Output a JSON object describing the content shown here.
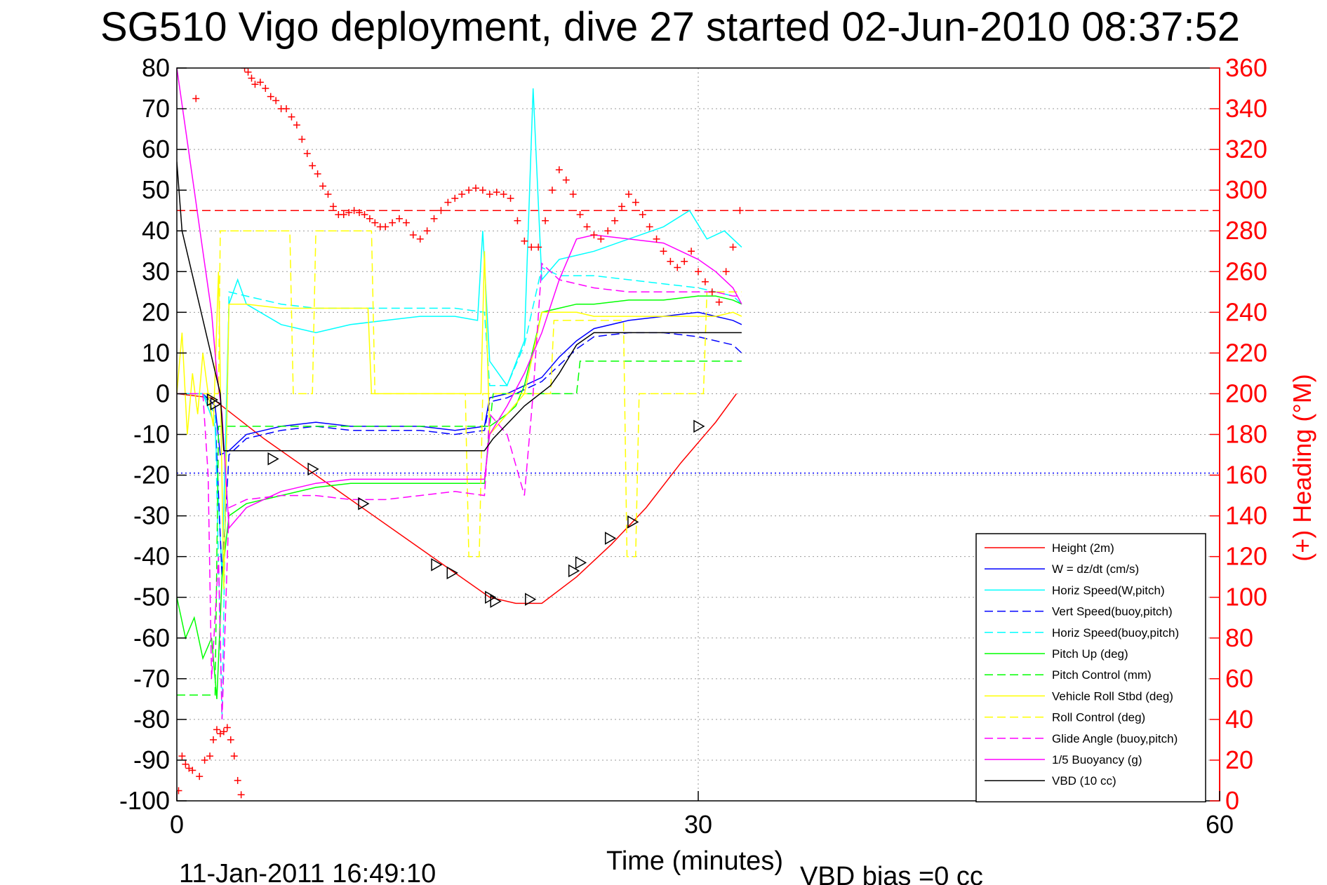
{
  "chart_data": {
    "type": "line",
    "title": "SG510 Vigo deployment, dive 27 started 02-Jun-2010 08:37:52",
    "xlabel": "Time (minutes)",
    "ylabel_right": "(+) Heading (°M)",
    "footer_left": "11-Jan-2011 16:49:10",
    "footer_right": "VBD bias =0 cc",
    "xlim": [
      0,
      60
    ],
    "ylim": [
      -100,
      80
    ],
    "y2lim": [
      0,
      360
    ],
    "xticks": [
      "0",
      "30",
      "60"
    ],
    "yticks": [
      "80",
      "70",
      "60",
      "50",
      "40",
      "30",
      "20",
      "10",
      "0",
      "-10",
      "-20",
      "-30",
      "-40",
      "-50",
      "-60",
      "-70",
      "-80",
      "-90",
      "-100"
    ],
    "y2ticks": [
      "360",
      "340",
      "320",
      "300",
      "280",
      "260",
      "240",
      "220",
      "200",
      "180",
      "160",
      "140",
      "120",
      "100",
      "80",
      "60",
      "40",
      "20",
      "0"
    ],
    "grid": true,
    "legend_position": "bottom-right",
    "series": [
      {
        "name": "Height (2m)",
        "color": "#ff0000",
        "style": "solid",
        "x": [
          0,
          2,
          5,
          10,
          15,
          18,
          19.5,
          21,
          23,
          25,
          27,
          29,
          31,
          32.2
        ],
        "y": [
          0,
          -1,
          -11,
          -26,
          -41,
          -50,
          -51.5,
          -51.5,
          -45,
          -37,
          -28,
          -17,
          -7,
          0
        ]
      },
      {
        "name": "W = dz/dt (cm/s)",
        "color": "#0000ff",
        "style": "solid",
        "x": [
          0,
          1.5,
          2.2,
          2.5,
          3,
          4,
          6,
          8,
          10,
          12,
          14,
          16,
          17.7,
          18,
          19,
          20,
          21,
          22,
          23,
          24,
          26,
          28,
          30,
          31,
          32,
          32.5
        ],
        "y": [
          0,
          0,
          -3,
          -15,
          -14,
          -10,
          -8,
          -7,
          -8,
          -8,
          -8,
          -9,
          -8,
          -1,
          0,
          2,
          4,
          9,
          13,
          16,
          18,
          19,
          20,
          19,
          18,
          17
        ]
      },
      {
        "name": "Horiz Speed(W,pitch)",
        "color": "#00ffff",
        "style": "solid",
        "x": [
          0,
          1.5,
          2.2,
          2.6,
          3,
          3.5,
          4,
          6,
          8,
          10,
          12,
          14,
          16,
          17.3,
          17.6,
          18,
          19,
          20,
          20.5,
          21,
          22,
          23,
          24,
          26,
          28,
          29.5,
          30.5,
          31.5,
          32.5
        ],
        "y": [
          0,
          0,
          -8,
          -45,
          22,
          28,
          22,
          17,
          15,
          17,
          18,
          19,
          19,
          18,
          40,
          8,
          2,
          13,
          75,
          28,
          33,
          34,
          35,
          38,
          41,
          45,
          38,
          40,
          36
        ]
      },
      {
        "name": "Vert Speed(buoy,pitch)",
        "color": "#0000ff",
        "style": "dashed",
        "x": [
          0,
          1.5,
          2.2,
          2.6,
          3,
          4,
          6,
          8,
          10,
          12,
          14,
          16,
          17.7,
          18,
          19,
          20,
          21,
          22,
          23,
          24,
          26,
          28,
          30,
          31,
          32,
          32.5
        ],
        "y": [
          0,
          0,
          -5,
          -45,
          -15,
          -11,
          -9,
          -8,
          -9,
          -9,
          -9,
          -10,
          -9,
          -2,
          -1,
          1,
          3,
          7,
          11,
          14,
          15,
          15,
          14,
          13,
          12,
          10
        ]
      },
      {
        "name": "Horiz Speed(buoy,pitch)",
        "color": "#00ffff",
        "style": "dashed",
        "x": [
          0,
          1.5,
          2.2,
          2.6,
          3,
          4,
          6,
          8,
          10,
          12,
          14,
          16,
          17.7,
          18,
          19,
          20,
          21,
          22,
          23,
          24,
          26,
          28,
          30,
          31,
          32,
          32.5
        ],
        "y": [
          0,
          0,
          -5,
          -80,
          25,
          24,
          22,
          21,
          21,
          21,
          21,
          21,
          20,
          2,
          2,
          12,
          31,
          29,
          29,
          29,
          28,
          27,
          26,
          25,
          24,
          22
        ]
      },
      {
        "name": "Pitch Up (deg)",
        "color": "#00ff00",
        "style": "solid",
        "x": [
          0,
          0.5,
          1,
          1.5,
          2,
          2.3,
          2.6,
          3,
          4,
          6,
          8,
          10,
          12,
          14,
          16,
          17.7,
          18,
          19,
          19.5,
          20,
          21,
          22,
          23,
          24,
          26,
          28,
          30,
          31,
          32,
          32.5
        ],
        "y": [
          -50,
          -60,
          -55,
          -65,
          -60,
          -75,
          -45,
          -30,
          -27,
          -25,
          -23,
          -22,
          -22,
          -22,
          -22,
          -22,
          -8,
          -5,
          -3,
          2,
          20,
          21,
          22,
          22,
          23,
          23,
          24,
          24,
          23,
          22
        ]
      },
      {
        "name": "Pitch Control (mm)",
        "color": "#00ff00",
        "style": "dashed",
        "x": [
          0,
          2.2,
          2.4,
          18,
          18.2,
          23,
          23.2,
          32.5
        ],
        "y": [
          -74,
          -74,
          -8,
          -8,
          0,
          0,
          8,
          8
        ]
      },
      {
        "name": "Vehicle Roll Stbd (deg)",
        "color": "#ffff00",
        "style": "solid",
        "x": [
          0,
          0.3,
          0.6,
          0.9,
          1.2,
          1.5,
          1.8,
          2.1,
          2.4,
          2.7,
          3,
          4,
          6,
          8,
          10,
          11,
          11.2,
          14,
          16,
          17.5,
          17.7,
          18,
          19,
          20,
          21,
          23,
          24,
          25,
          26,
          28,
          30,
          31,
          32,
          32.5
        ],
        "y": [
          0,
          15,
          -10,
          5,
          -5,
          10,
          0,
          -8,
          30,
          -48,
          22,
          22,
          21,
          21,
          21,
          21,
          0,
          0,
          0,
          0,
          35,
          -10,
          -5,
          0,
          20,
          20,
          19,
          19,
          19,
          19,
          19,
          19,
          20,
          19
        ]
      },
      {
        "name": "Roll Control (deg)",
        "color": "#ffff00",
        "style": "dashed",
        "x": [
          0,
          2.4,
          2.5,
          6.5,
          6.7,
          7.8,
          8,
          11.2,
          11.4,
          16.6,
          16.8,
          17.4,
          17.6,
          21.5,
          21.7,
          25.7,
          25.9,
          26.4,
          26.6,
          30.3,
          30.5,
          32.5
        ],
        "y": [
          0,
          0,
          40,
          40,
          0,
          0,
          40,
          40,
          0,
          0,
          -40,
          -40,
          0,
          0,
          18,
          18,
          -40,
          -40,
          0,
          0,
          25,
          25
        ]
      },
      {
        "name": "Glide Angle (buoy,pitch)",
        "color": "#ff00ff",
        "style": "dashed",
        "x": [
          0,
          1.5,
          1.8,
          2,
          2.2,
          2.4,
          2.6,
          3,
          4,
          6,
          8,
          10,
          12,
          14,
          16,
          17.7,
          18,
          19,
          20,
          20.5,
          21,
          22,
          24,
          26,
          28,
          30,
          31,
          32,
          32.5
        ],
        "y": [
          0,
          0,
          -20,
          -70,
          -55,
          -40,
          -80,
          -28,
          -26,
          -25,
          -25,
          -26,
          -26,
          -25,
          -24,
          -25,
          -5,
          -10,
          -25,
          0,
          32,
          28,
          26,
          25,
          25,
          25,
          25,
          24,
          24
        ]
      },
      {
        "name": "1/5 Buoyancy (g)",
        "color": "#ff00ff",
        "style": "solid",
        "x": [
          0,
          0.5,
          1,
          1.5,
          2,
          2.3,
          2.6,
          3,
          4,
          6,
          8,
          10,
          12,
          14,
          16,
          17.7,
          18,
          19,
          20,
          21,
          22,
          23,
          24,
          26,
          28,
          30,
          31,
          32,
          32.5
        ],
        "y": [
          80,
          65,
          50,
          35,
          20,
          5,
          -5,
          -33,
          -28,
          -24,
          -22,
          -21,
          -21,
          -21,
          -21,
          -21,
          -10,
          -3,
          5,
          15,
          28,
          38,
          39,
          38,
          37,
          33,
          30,
          26,
          22
        ]
      },
      {
        "name": "VBD (10 cc)",
        "color": "#000000",
        "style": "solid",
        "x": [
          0,
          0.3,
          2.5,
          2.7,
          17.7,
          18.2,
          20,
          21.5,
          22,
          23,
          24,
          32.5
        ],
        "y": [
          57,
          40,
          0,
          -14,
          -14,
          -11,
          -3,
          2,
          5,
          12,
          15,
          15
        ]
      }
    ],
    "heading_points": {
      "name": "Heading",
      "color": "#ff0000",
      "marker": "+",
      "axis": "right",
      "x": [
        0.1,
        0.3,
        0.5,
        0.7,
        0.9,
        1.1,
        1.3,
        1.6,
        1.9,
        2.1,
        2.3,
        2.5,
        2.7,
        2.9,
        3.1,
        3.3,
        3.5,
        3.7,
        3.9,
        4.1,
        4.3,
        4.5,
        4.8,
        5.1,
        5.4,
        5.7,
        6.0,
        6.3,
        6.6,
        6.9,
        7.2,
        7.5,
        7.8,
        8.1,
        8.4,
        8.7,
        9.0,
        9.3,
        9.6,
        9.9,
        10.2,
        10.5,
        10.8,
        11.1,
        11.4,
        11.7,
        12.0,
        12.4,
        12.8,
        13.2,
        13.6,
        14.0,
        14.4,
        14.8,
        15.2,
        15.6,
        16.0,
        16.4,
        16.8,
        17.2,
        17.6,
        18.0,
        18.4,
        18.8,
        19.2,
        19.6,
        20.0,
        20.4,
        20.8,
        21.2,
        21.6,
        22.0,
        22.4,
        22.8,
        23.2,
        23.6,
        24.0,
        24.4,
        24.8,
        25.2,
        25.6,
        26.0,
        26.4,
        26.8,
        27.2,
        27.6,
        28.0,
        28.4,
        28.8,
        29.2,
        29.6,
        30.0,
        30.4,
        30.8,
        31.2,
        31.6,
        32.0,
        32.4
      ],
      "y": [
        5,
        22,
        18,
        16,
        15,
        345,
        12,
        20,
        22,
        30,
        35,
        33,
        34,
        36,
        30,
        22,
        10,
        3,
        360,
        358,
        355,
        352,
        353,
        350,
        346,
        344,
        340,
        340,
        336,
        332,
        325,
        318,
        312,
        308,
        302,
        298,
        292,
        288,
        288,
        289,
        290,
        289,
        288,
        286,
        284,
        282,
        282,
        284,
        286,
        284,
        278,
        276,
        280,
        286,
        290,
        294,
        296,
        298,
        300,
        301,
        300,
        298,
        299,
        298,
        296,
        285,
        275,
        272,
        272,
        285,
        300,
        310,
        305,
        298,
        288,
        282,
        278,
        276,
        280,
        285,
        292,
        298,
        294,
        288,
        282,
        276,
        270,
        265,
        262,
        265,
        270,
        260,
        255,
        250,
        245,
        260,
        272,
        290
      ]
    },
    "reference_lines": [
      {
        "axis": "right",
        "y": 290,
        "color": "#ff0000",
        "style": "dashed"
      },
      {
        "axis": "left",
        "y": -19.5,
        "color": "#0000ff",
        "style": "dotted"
      }
    ],
    "triangle_markers": {
      "color": "#000000",
      "x": [
        2.0,
        2.2,
        5.5,
        7.8,
        10.7,
        14.9,
        15.8,
        18.0,
        18.3,
        20.3,
        22.8,
        23.2,
        24.9,
        26.2,
        30.0
      ],
      "y": [
        -1.5,
        -2.5,
        -16,
        -18.5,
        -27,
        -42,
        -44,
        -50,
        -51,
        -50.5,
        -43.5,
        -41.5,
        -35.5,
        -31.5,
        -8
      ]
    }
  }
}
